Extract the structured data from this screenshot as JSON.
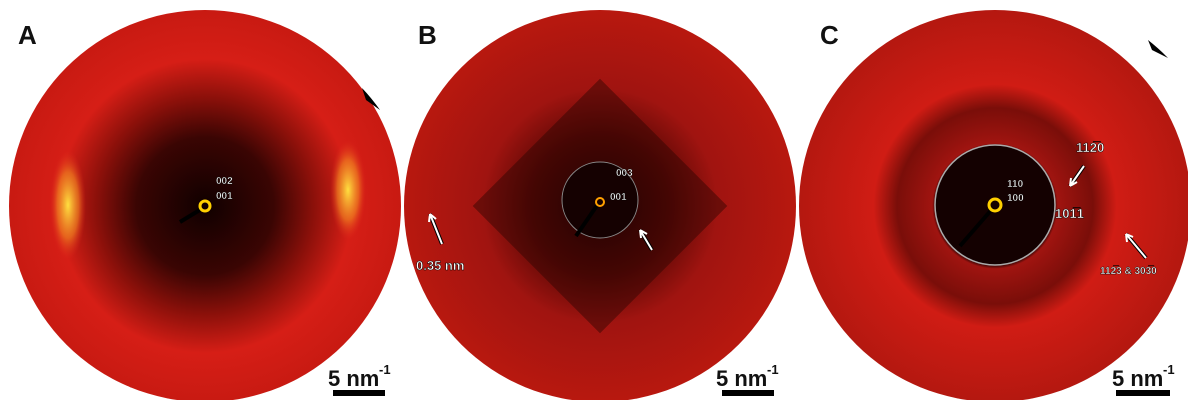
{
  "panels": [
    {
      "label": "A",
      "annotations": [
        "002",
        "001"
      ],
      "scale_bar": {
        "text": "5 nm",
        "exponent": "-1"
      }
    },
    {
      "label": "B",
      "annotations": [
        "003",
        "001",
        "0.35 nm"
      ],
      "scale_bar": {
        "text": "5 nm",
        "exponent": "-1"
      }
    },
    {
      "label": "C",
      "annotations": [
        "110",
        "100",
        "101̅1",
        "112̅0",
        "112̅3 & 303̅0"
      ],
      "scale_bar": {
        "text": "5 nm",
        "exponent": "-1"
      }
    }
  ]
}
